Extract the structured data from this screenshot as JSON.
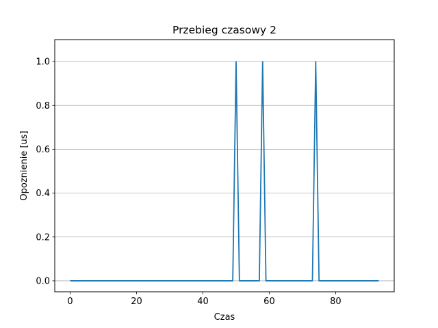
{
  "chart_data": {
    "type": "line",
    "title": "Przebieg czasowy 2",
    "xlabel": "Czas",
    "ylabel": "Opoznienie [us]",
    "xlim": [
      -4.65,
      97.65
    ],
    "ylim": [
      -0.05,
      1.1
    ],
    "xticks": [
      0,
      20,
      40,
      60,
      80
    ],
    "xtick_labels": [
      "0",
      "20",
      "40",
      "60",
      "80"
    ],
    "yticks": [
      0.0,
      0.2,
      0.4,
      0.6,
      0.8,
      1.0
    ],
    "ytick_labels": [
      "0.0",
      "0.2",
      "0.4",
      "0.6",
      "0.8",
      "1.0"
    ],
    "grid": "y-axis horizontal lines",
    "series": [
      {
        "color": "#1f77b4",
        "x": [
          0,
          49,
          50,
          51,
          57,
          58,
          59,
          73,
          74,
          75,
          93
        ],
        "y": [
          0,
          0,
          1,
          0,
          0,
          1,
          0,
          0,
          1,
          0,
          0
        ]
      }
    ]
  }
}
